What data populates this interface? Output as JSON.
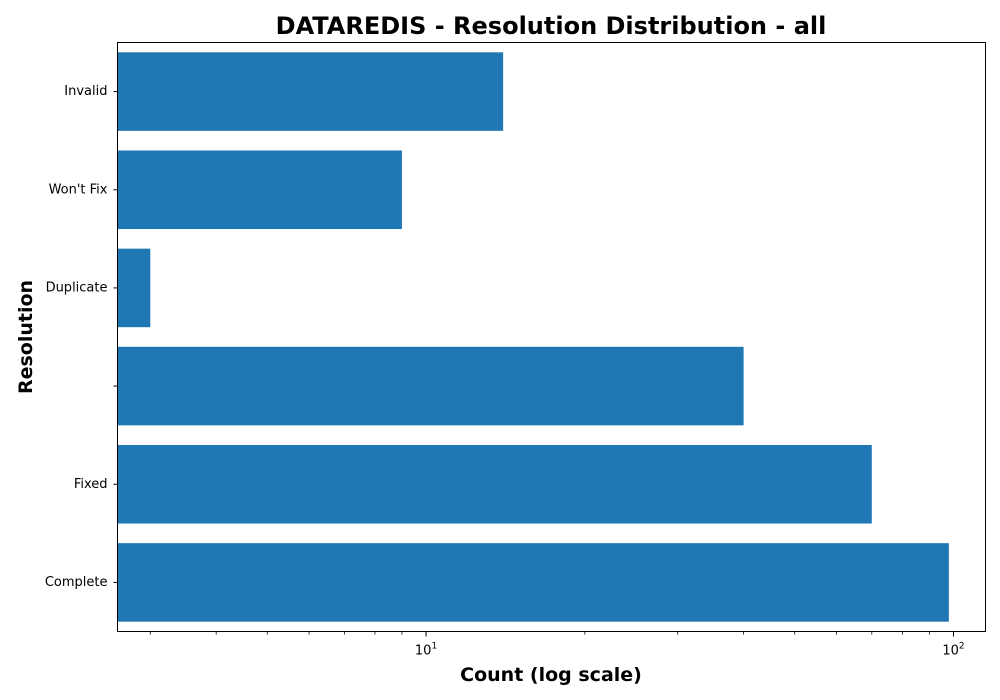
{
  "chart_data": {
    "type": "bar",
    "orientation": "horizontal",
    "title": "DATAREDIS - Resolution Distribution - all",
    "xlabel": "Count (log scale)",
    "ylabel": "Resolution",
    "x_scale": "log",
    "xlim": [
      2.6,
      115
    ],
    "x_ticks": [
      {
        "base": "10",
        "exp": "1",
        "value": 10
      },
      {
        "base": "10",
        "exp": "2",
        "value": 100
      }
    ],
    "categories": [
      "Complete",
      "Fixed",
      "",
      "Duplicate",
      "Won't Fix",
      "Invalid"
    ],
    "values": [
      98,
      70,
      40,
      3,
      9,
      14
    ],
    "bar_color": "#1f77b4",
    "grid": false,
    "legend": "none"
  }
}
